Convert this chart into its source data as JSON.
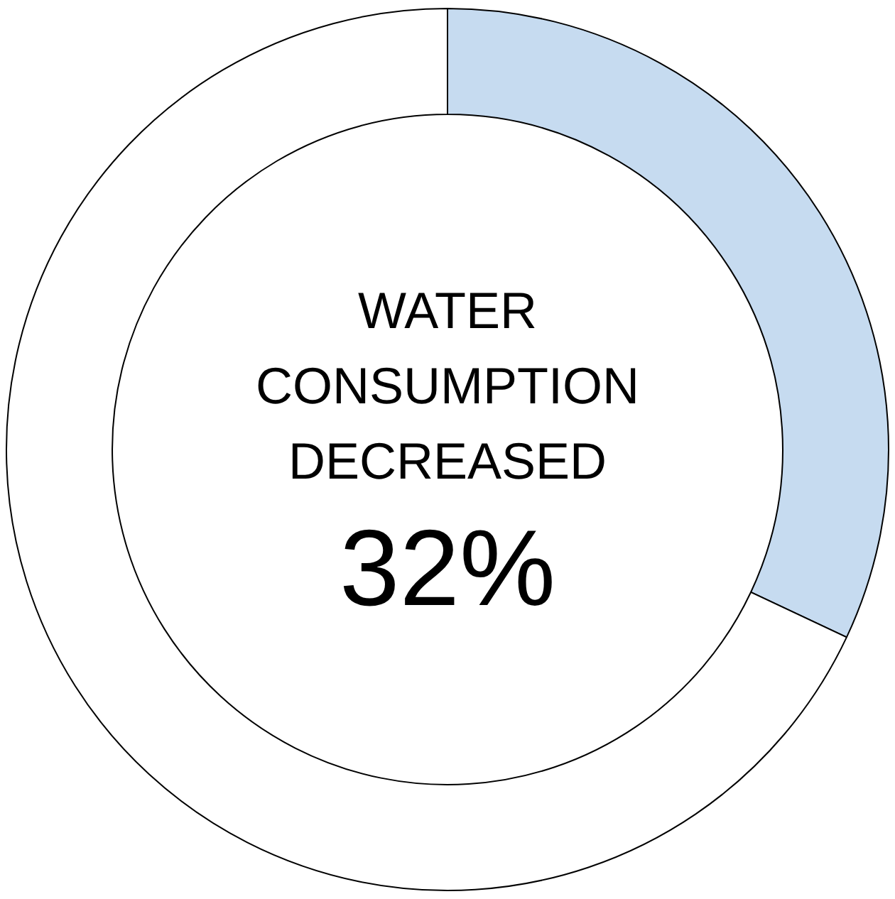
{
  "chart_data": {
    "type": "donut",
    "title": "WATER CONSUMPTION DECREASED",
    "categories": [
      null,
      null
    ],
    "values": [
      32,
      68
    ],
    "colors": [
      "#c6dbf0",
      "#ffffff"
    ],
    "annotations": [
      "32%"
    ],
    "legend": false
  }
}
